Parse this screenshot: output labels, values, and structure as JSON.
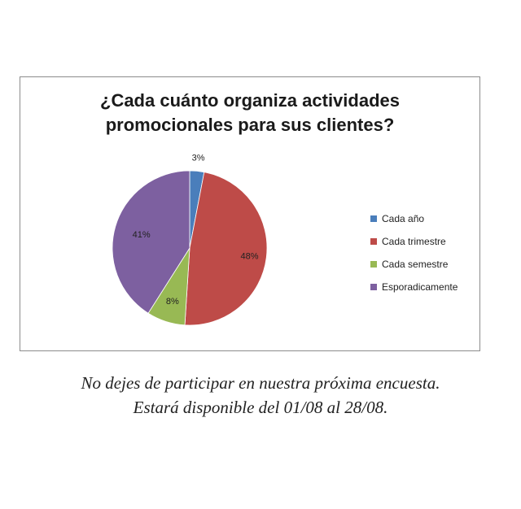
{
  "chart_data": {
    "type": "pie",
    "title": "¿Cada cuánto organiza actividades promocionales para sus clientes?",
    "title_lines": [
      "¿Cada cuánto organiza actividades",
      "promocionales para sus clientes?"
    ],
    "categories": [
      "Cada año",
      "Cada trimestre",
      "Cada semestre",
      "Esporadicamente"
    ],
    "values": [
      3,
      48,
      8,
      41
    ],
    "labels": [
      "3%",
      "48%",
      "8%",
      "41%"
    ],
    "colors": [
      "#4a7ebb",
      "#be4b48",
      "#98b954",
      "#7d60a0"
    ],
    "legend_position": "right"
  },
  "footer": {
    "line1": "No dejes de participar en nuestra próxima encuesta.",
    "line2": "Estará disponible del 01/08 al 28/08."
  }
}
